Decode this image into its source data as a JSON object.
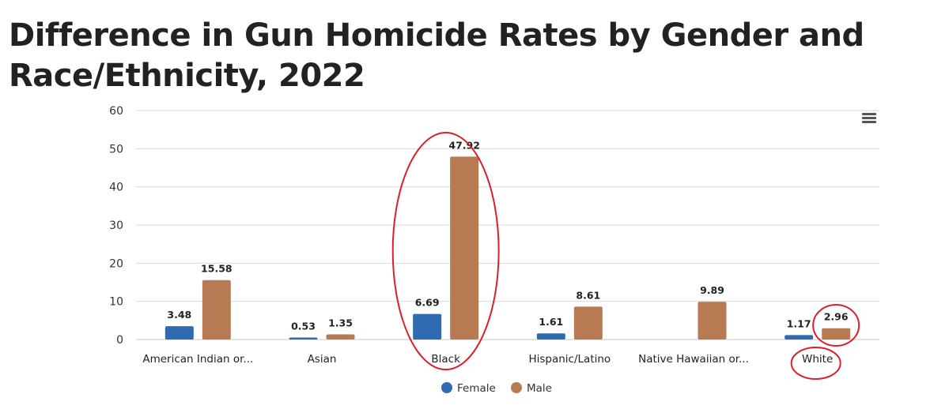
{
  "page": {
    "title": "Difference in Gun Homicide Rates by Gender and Race/Ethnicity, 2022"
  },
  "chart_data": {
    "type": "bar",
    "title": "Difference in Gun Homicide Rates by Gender and Race/Ethnicity, 2022",
    "xlabel": "",
    "ylabel": "",
    "ylim": [
      0,
      60
    ],
    "yticks": [
      0,
      10,
      20,
      30,
      40,
      50,
      60
    ],
    "grid": true,
    "legend_position": "bottom",
    "categories": [
      "American Indian or...",
      "Asian",
      "Black",
      "Hispanic/Latino",
      "Native Hawaiian or...",
      "White"
    ],
    "series": [
      {
        "name": "Female",
        "color": "#2e6bb0",
        "values": [
          3.48,
          0.53,
          6.69,
          1.61,
          null,
          1.17
        ]
      },
      {
        "name": "Male",
        "color": "#b87a52",
        "values": [
          15.58,
          1.35,
          47.92,
          8.61,
          9.89,
          2.96
        ]
      }
    ],
    "annotation_color": "#d9212b"
  }
}
